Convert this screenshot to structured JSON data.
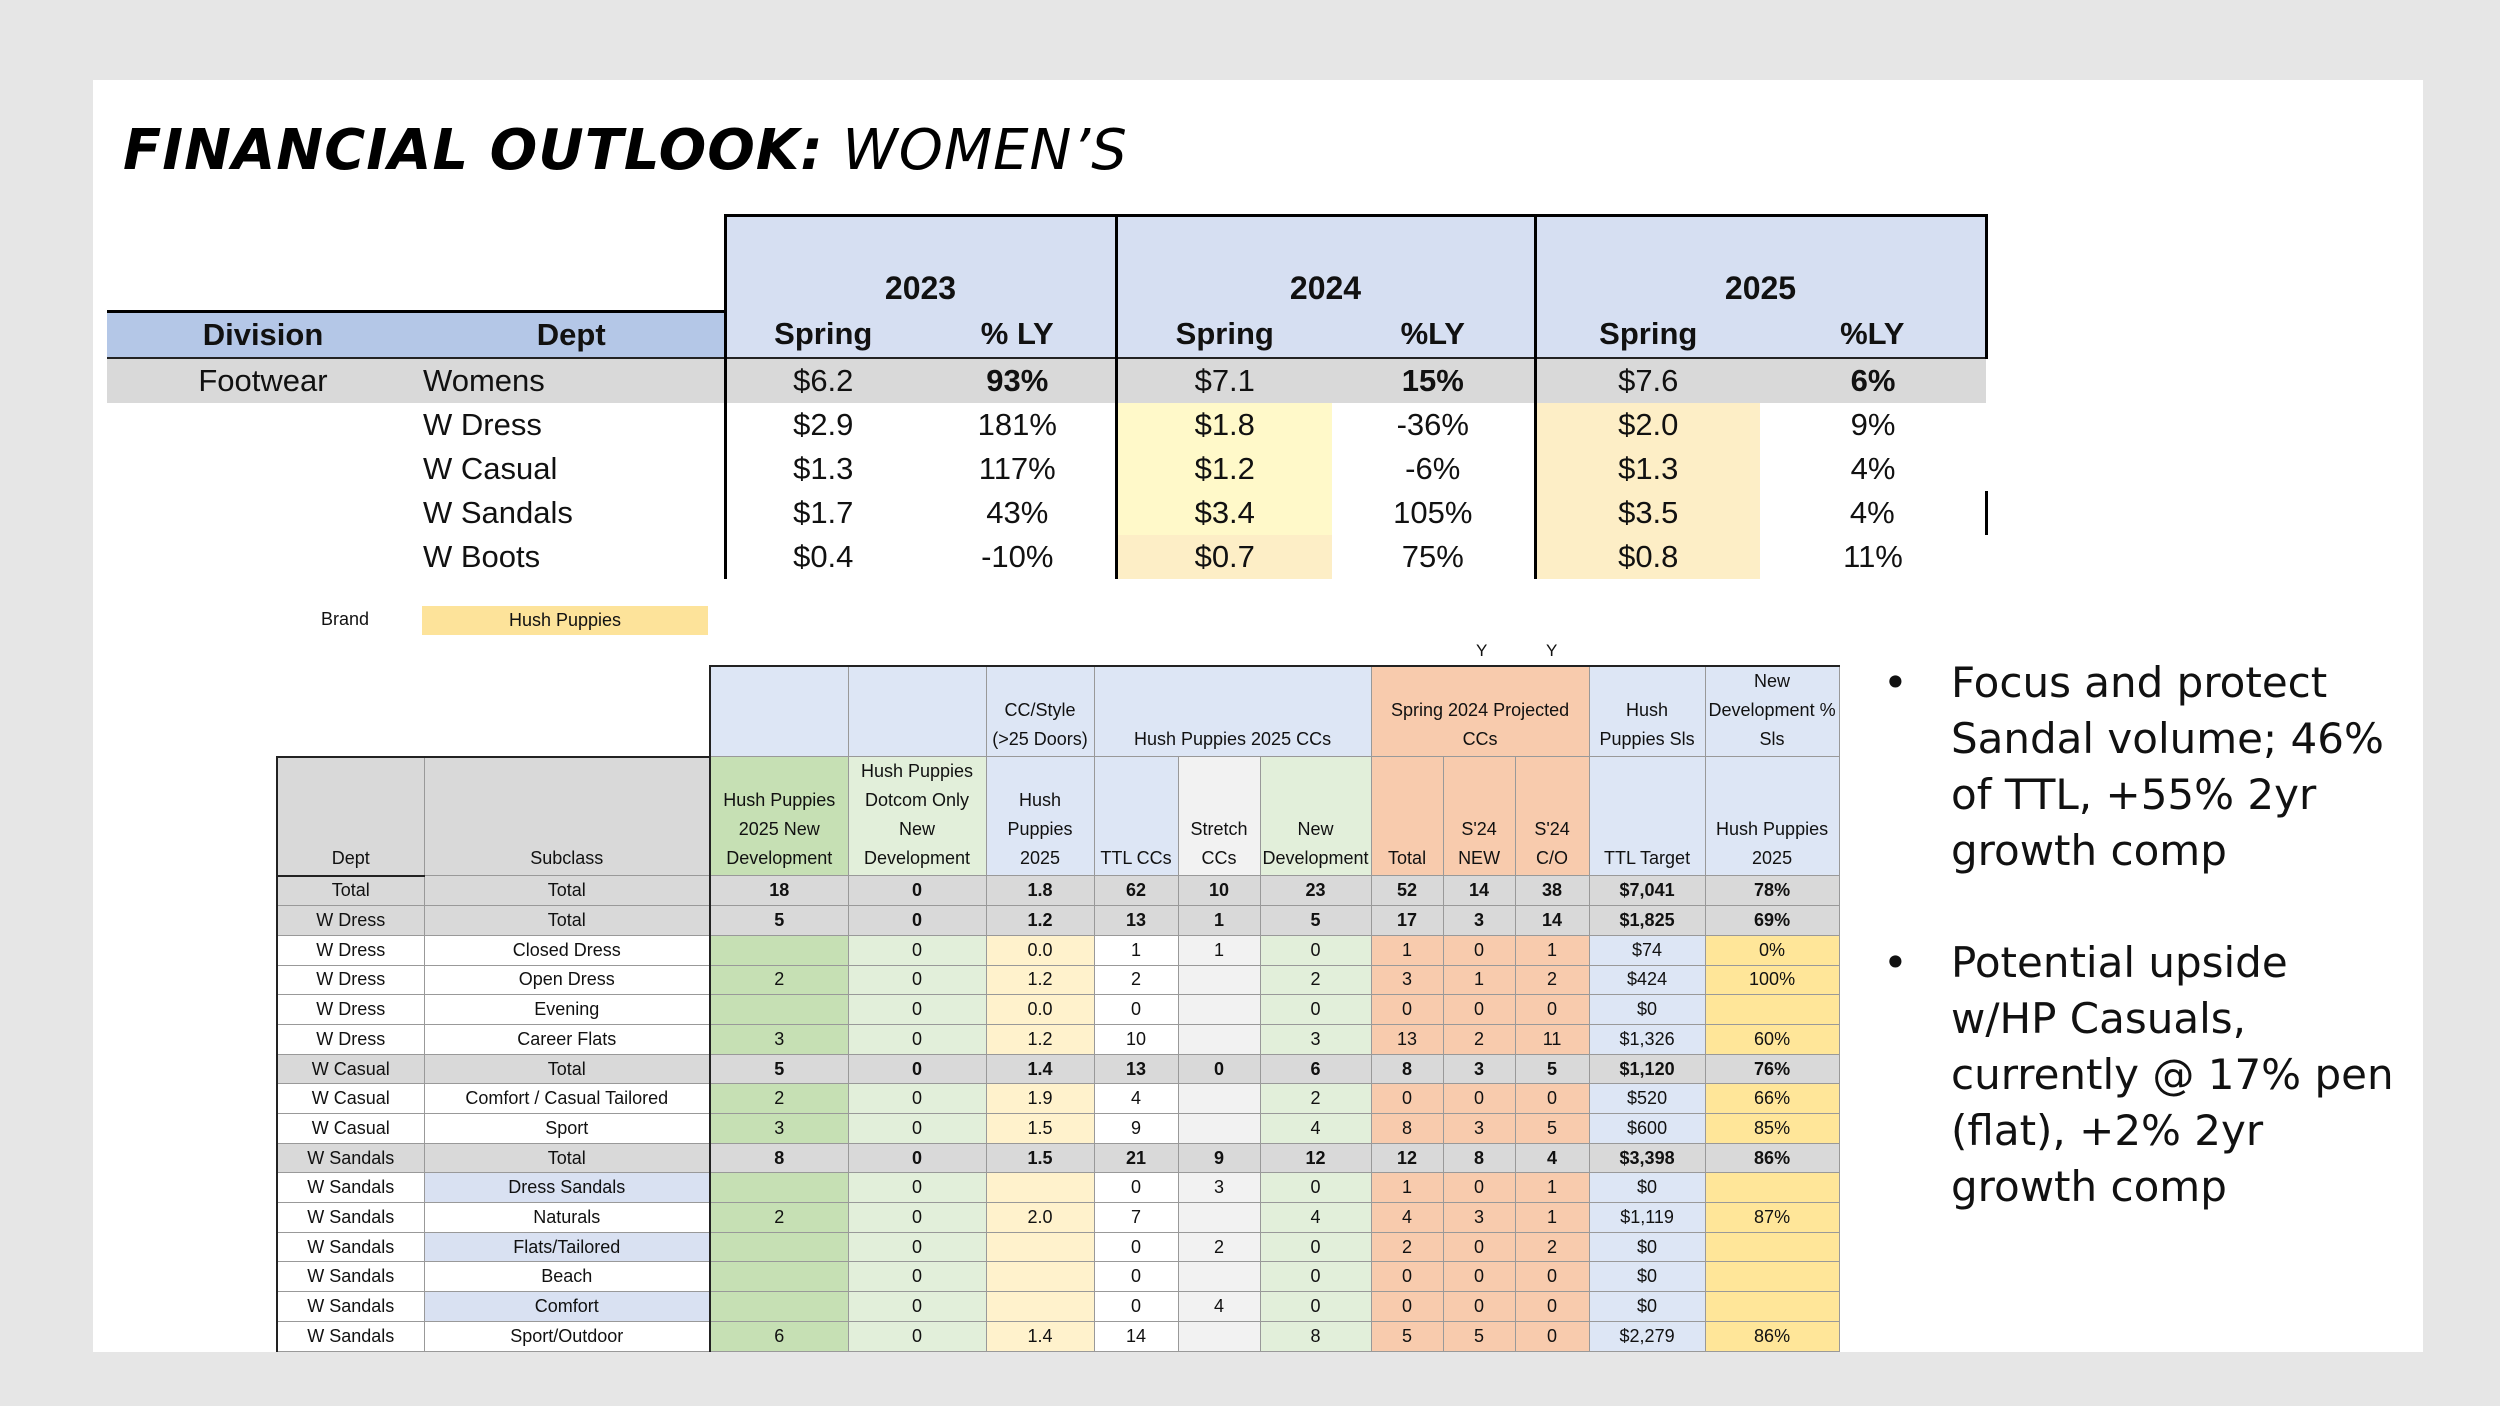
{
  "title": {
    "bold": "FINANCIAL OUTLOOK:",
    "light": " WOMEN’S"
  },
  "summary": {
    "years": [
      "2023",
      "2024",
      "2025"
    ],
    "headers": {
      "division": "Division",
      "dept": "Dept",
      "spring": "Spring",
      "pct_2023": "% LY",
      "pct_2024": "%LY",
      "pct_2025": "%LY"
    },
    "rows": [
      {
        "division": "Footwear",
        "dept": "Womens",
        "s23": "$6.2",
        "p23": "93%",
        "s24": "$7.1",
        "p24": "15%",
        "s25": "$7.6",
        "p25": "6%"
      },
      {
        "division": "",
        "dept": "W Dress",
        "s23": "$2.9",
        "p23": "181%",
        "s24": "$1.8",
        "p24": "-36%",
        "s25": "$2.0",
        "p25": "9%"
      },
      {
        "division": "",
        "dept": "W Casual",
        "s23": "$1.3",
        "p23": "117%",
        "s24": "$1.2",
        "p24": "-6%",
        "s25": "$1.3",
        "p25": "4%"
      },
      {
        "division": "",
        "dept": "W Sandals",
        "s23": "$1.7",
        "p23": "43%",
        "s24": "$3.4",
        "p24": "105%",
        "s25": "$3.5",
        "p25": "4%"
      },
      {
        "division": "",
        "dept": "W Boots",
        "s23": "$0.4",
        "p23": "-10%",
        "s24": "$0.7",
        "p24": "75%",
        "s25": "$0.8",
        "p25": "11%"
      }
    ]
  },
  "brand": {
    "label": "Brand",
    "value": "Hush Puppies"
  },
  "flags": [
    "Y",
    "Y"
  ],
  "grid": {
    "group_headers": {
      "cc_style": "CC/Style (>25 Doors)",
      "hp2025": "Hush Puppies 2025 CCs",
      "spring2024": "Spring 2024 Projected CCs",
      "hp_sls": "Hush Puppies Sls",
      "newdev": "New Development % Sls"
    },
    "columns": [
      "Dept",
      "Subclass",
      "Hush Puppies 2025 New Development",
      "Hush Puppies Dotcom Only New Development",
      "Hush Puppies 2025",
      "TTL CCs",
      "Stretch CCs",
      "New Development",
      "Total",
      "S'24 NEW",
      "S'24 C/O",
      "TTL Target",
      "Hush Puppies 2025"
    ],
    "rows": [
      {
        "total": true,
        "c": [
          "Total",
          "Total",
          "18",
          "0",
          "1.8",
          "62",
          "10",
          "23",
          "52",
          "14",
          "38",
          "$7,041",
          "78%"
        ]
      },
      {
        "total": true,
        "c": [
          "W Dress",
          "Total",
          "5",
          "0",
          "1.2",
          "13",
          "1",
          "5",
          "17",
          "3",
          "14",
          "$1,825",
          "69%"
        ]
      },
      {
        "total": false,
        "c": [
          "W Dress",
          "Closed Dress",
          "",
          "0",
          "0.0",
          "1",
          "1",
          "0",
          "1",
          "0",
          "1",
          "$74",
          "0%"
        ]
      },
      {
        "total": false,
        "c": [
          "W Dress",
          "Open Dress",
          "2",
          "0",
          "1.2",
          "2",
          "",
          "2",
          "3",
          "1",
          "2",
          "$424",
          "100%"
        ]
      },
      {
        "total": false,
        "c": [
          "W Dress",
          "Evening",
          "",
          "0",
          "0.0",
          "0",
          "",
          "0",
          "0",
          "0",
          "0",
          "$0",
          ""
        ]
      },
      {
        "total": false,
        "c": [
          "W Dress",
          "Career Flats",
          "3",
          "0",
          "1.2",
          "10",
          "",
          "3",
          "13",
          "2",
          "11",
          "$1,326",
          "60%"
        ]
      },
      {
        "total": true,
        "c": [
          "W Casual",
          "Total",
          "5",
          "0",
          "1.4",
          "13",
          "0",
          "6",
          "8",
          "3",
          "5",
          "$1,120",
          "76%"
        ]
      },
      {
        "total": false,
        "c": [
          "W Casual",
          "Comfort / Casual Tailored",
          "2",
          "0",
          "1.9",
          "4",
          "",
          "2",
          "0",
          "0",
          "0",
          "$520",
          "66%"
        ]
      },
      {
        "total": false,
        "c": [
          "W Casual",
          "Sport",
          "3",
          "0",
          "1.5",
          "9",
          "",
          "4",
          "8",
          "3",
          "5",
          "$600",
          "85%"
        ]
      },
      {
        "total": true,
        "c": [
          "W Sandals",
          "Total",
          "8",
          "0",
          "1.5",
          "21",
          "9",
          "12",
          "12",
          "8",
          "4",
          "$3,398",
          "86%"
        ]
      },
      {
        "total": false,
        "sub_blue": true,
        "c": [
          "W Sandals",
          "Dress Sandals",
          "",
          "0",
          "",
          "0",
          "3",
          "0",
          "1",
          "0",
          "1",
          "$0",
          ""
        ]
      },
      {
        "total": false,
        "c": [
          "W Sandals",
          "Naturals",
          "2",
          "0",
          "2.0",
          "7",
          "",
          "4",
          "4",
          "3",
          "1",
          "$1,119",
          "87%"
        ]
      },
      {
        "total": false,
        "sub_blue": true,
        "c": [
          "W Sandals",
          "Flats/Tailored",
          "",
          "0",
          "",
          "0",
          "2",
          "0",
          "2",
          "0",
          "2",
          "$0",
          ""
        ]
      },
      {
        "total": false,
        "c": [
          "W Sandals",
          "Beach",
          "",
          "0",
          "",
          "0",
          "",
          "0",
          "0",
          "0",
          "0",
          "$0",
          ""
        ]
      },
      {
        "total": false,
        "sub_blue": true,
        "c": [
          "W Sandals",
          "Comfort",
          "",
          "0",
          "",
          "0",
          "4",
          "0",
          "0",
          "0",
          "0",
          "$0",
          ""
        ]
      },
      {
        "total": false,
        "c": [
          "W Sandals",
          "Sport/Outdoor",
          "6",
          "0",
          "1.4",
          "14",
          "",
          "8",
          "5",
          "5",
          "0",
          "$2,279",
          "86%"
        ]
      }
    ]
  },
  "bullets": [
    "Focus and protect Sandal volume; 46% of TTL, +55% 2yr growth comp",
    "Potential upside w/HP Casuals, currently @ 17% pen (flat), +2% 2yr growth comp"
  ],
  "colors": {
    "header_blue": "#b4c7e7",
    "light_blue": "#d6dff2",
    "yellow": "#fff2cc",
    "salmon": "#f8cbad",
    "green": "#c6e0b4"
  }
}
